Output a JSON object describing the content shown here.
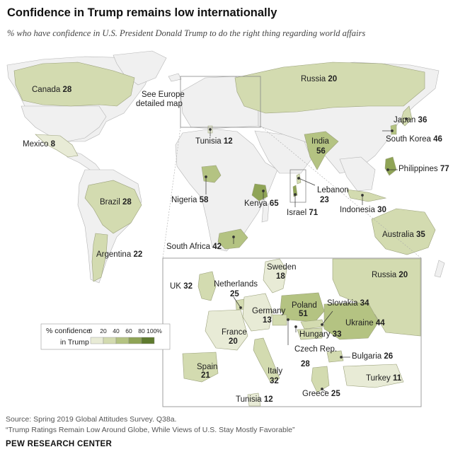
{
  "title": "Confidence in Trump remains low internationally",
  "subtitle": "% who have confidence in U.S. President Donald Trump to do the right thing regarding world affairs",
  "world_countries": [
    {
      "name": "Canada",
      "value": 28
    },
    {
      "name": "Russia",
      "value": 20
    },
    {
      "name": "Mexico",
      "value": 8
    },
    {
      "name": "Tunisia",
      "value": 12
    },
    {
      "name": "India",
      "value": 56
    },
    {
      "name": "Japan",
      "value": 36
    },
    {
      "name": "South Korea",
      "value": 46
    },
    {
      "name": "Philippines",
      "value": 77
    },
    {
      "name": "Nigeria",
      "value": 58
    },
    {
      "name": "Kenya",
      "value": 65
    },
    {
      "name": "Lebanon",
      "value": 23
    },
    {
      "name": "Israel",
      "value": 71
    },
    {
      "name": "Indonesia",
      "value": 30
    },
    {
      "name": "Brazil",
      "value": 28
    },
    {
      "name": "Argentina",
      "value": 22
    },
    {
      "name": "South Africa",
      "value": 42
    },
    {
      "name": "Australia",
      "value": 35
    }
  ],
  "europe_countries": [
    {
      "name": "Sweden",
      "value": 18
    },
    {
      "name": "Russia",
      "value": 20
    },
    {
      "name": "UK",
      "value": 32
    },
    {
      "name": "Netherlands",
      "value": 25
    },
    {
      "name": "Poland",
      "value": 51
    },
    {
      "name": "Slovakia",
      "value": 34
    },
    {
      "name": "Germany",
      "value": 13
    },
    {
      "name": "Ukraine",
      "value": 44
    },
    {
      "name": "Hungary",
      "value": 33
    },
    {
      "name": "France",
      "value": 20
    },
    {
      "name": "Czech Rep.",
      "value": 28
    },
    {
      "name": "Bulgaria",
      "value": 26
    },
    {
      "name": "Spain",
      "value": 21
    },
    {
      "name": "Italy",
      "value": 32
    },
    {
      "name": "Turkey",
      "value": 11
    },
    {
      "name": "Greece",
      "value": 25
    },
    {
      "name": "Tunisia",
      "value": 12
    }
  ],
  "europe_note_line1": "See Europe",
  "europe_note_line2": "detailed map",
  "legend": {
    "title_line1": "% confidence",
    "title_line2": "in Trump",
    "ticks": [
      "0",
      "20",
      "40",
      "60",
      "80",
      "100%"
    ],
    "colors": [
      "#e8ebd6",
      "#d3dbb0",
      "#b4c382",
      "#8fa456",
      "#5e7a2e"
    ]
  },
  "colors": {
    "land_no_data": "#f0f0f0",
    "border": "#b5b5b5",
    "ocean": "#ffffff"
  },
  "source_line1": "Source: Spring 2019 Global Attitudes Survey. Q38a.",
  "source_line2": "“Trump Ratings Remain Low Around Globe, While Views of U.S. Stay Mostly Favorable”",
  "brand": "PEW RESEARCH CENTER"
}
